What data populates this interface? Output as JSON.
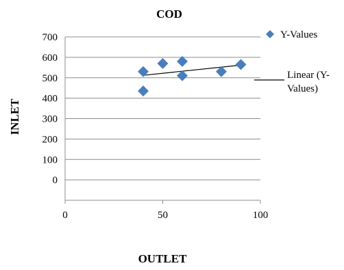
{
  "chart_data": {
    "type": "scatter",
    "title": "COD",
    "xlabel": "OUTLET",
    "ylabel": "INLET",
    "xlim": [
      0,
      100
    ],
    "ylim": [
      -100,
      700
    ],
    "x_ticks": [
      "0",
      "50",
      "100"
    ],
    "y_ticks": [
      "700",
      "600",
      "500",
      "400",
      "300",
      "200",
      "100",
      "0"
    ],
    "grid": "horizontal",
    "legend_position": "right",
    "series": [
      {
        "name": "Y-Values",
        "marker": "diamond",
        "color": "#4a7ebb",
        "points": [
          {
            "x": 40,
            "y": 435
          },
          {
            "x": 40,
            "y": 530
          },
          {
            "x": 50,
            "y": 570
          },
          {
            "x": 60,
            "y": 580
          },
          {
            "x": 60,
            "y": 510
          },
          {
            "x": 80,
            "y": 530
          },
          {
            "x": 90,
            "y": 565
          }
        ]
      }
    ],
    "trendline": {
      "name_lines": [
        "Linear (Y-",
        "Values)"
      ],
      "type": "linear",
      "color": "#000000",
      "from": {
        "x": 40,
        "y": 512
      },
      "to": {
        "x": 90,
        "y": 562
      }
    }
  }
}
